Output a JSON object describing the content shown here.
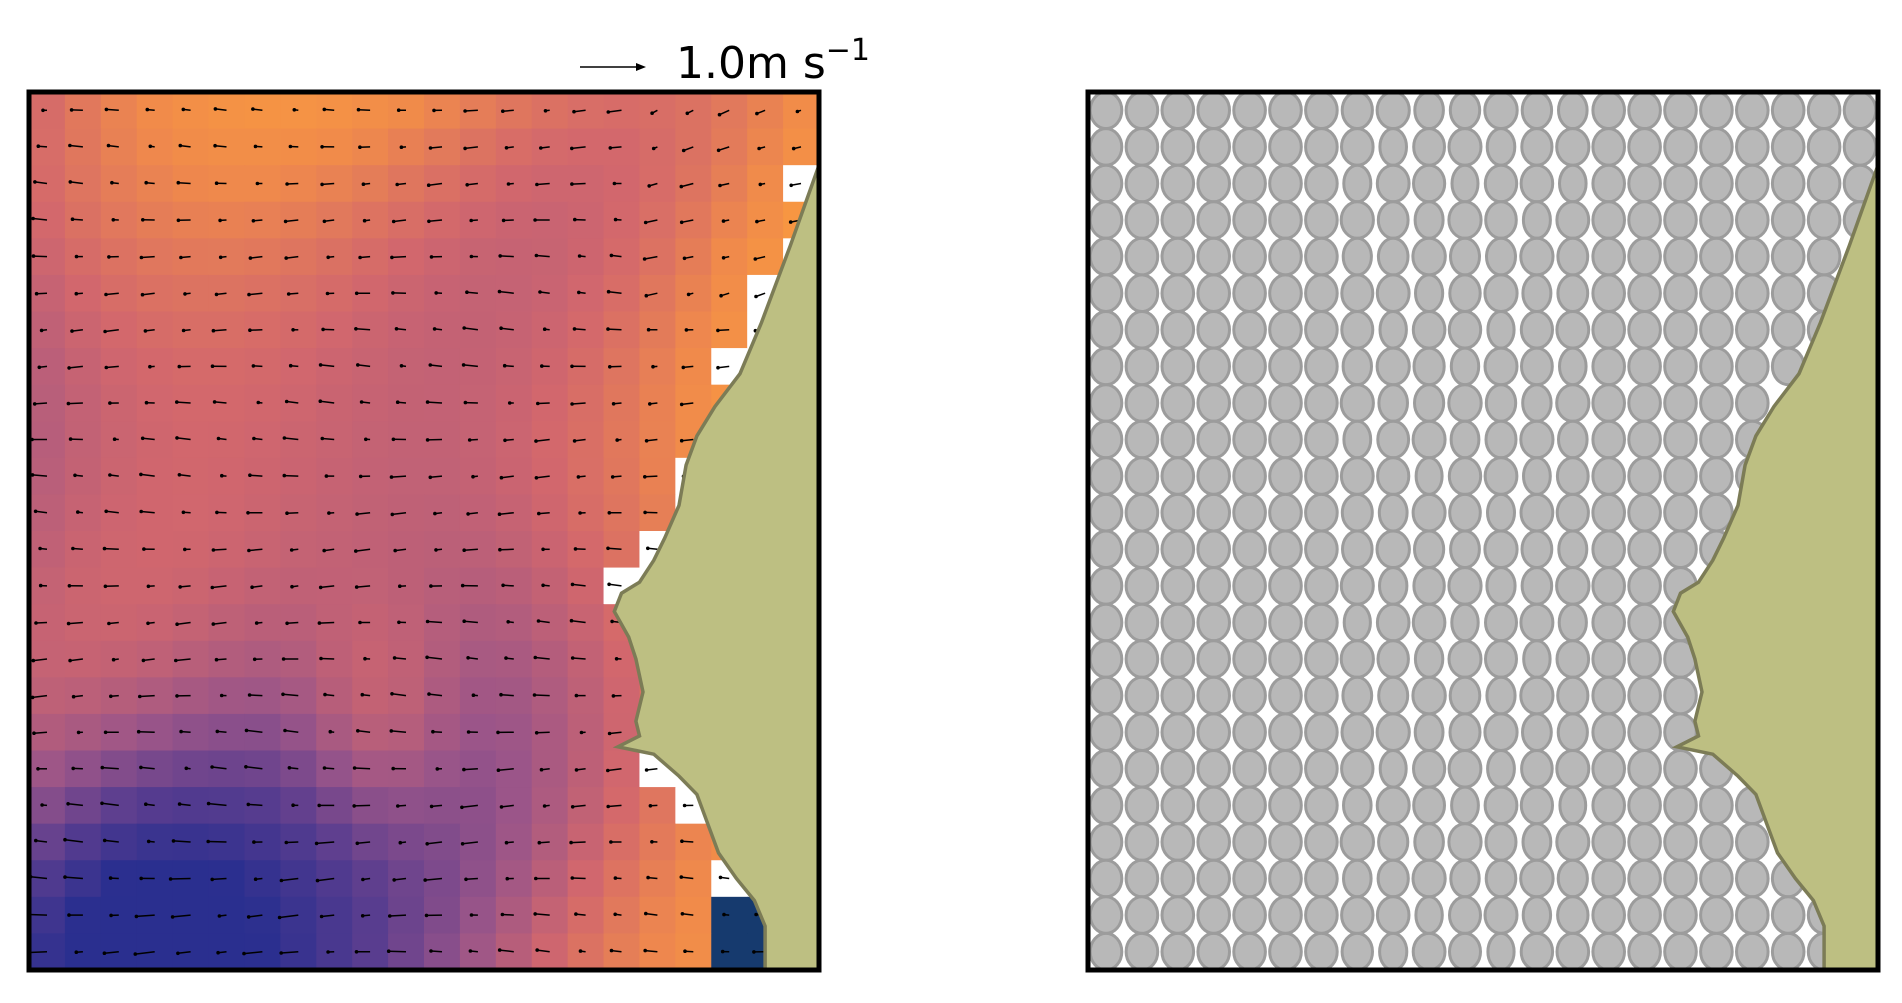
{
  "quiver_key": {
    "value": "1.0",
    "unit": "m s",
    "exponent": "−1"
  },
  "left_panel": {
    "grid": {
      "cols": 22,
      "rows": 24,
      "cell_m": 1
    },
    "colormap": [
      "#2a2f8f",
      "#5a3d8f",
      "#9a5589",
      "#d2676d",
      "#f08a4b",
      "#fb9e3c"
    ],
    "masked_color": "#ffffff",
    "low_color": "#163a6e",
    "land_color": "#bdbf82",
    "land_edge_color": "#7c7c56",
    "frame_color": "#000000"
  },
  "right_panel": {
    "grid": {
      "cols": 22,
      "rows": 24,
      "cell_m": 1
    },
    "ellipse_fill": "#b8b8b8",
    "ellipse_edge": "#9c9c9c",
    "land_color": "#bdbf82",
    "land_edge_color": "#7c7c56",
    "frame_color": "#000000"
  },
  "coastline": [
    [
      22,
      2
    ],
    [
      21.2,
      4.2
    ],
    [
      20.4,
      6.3
    ],
    [
      19.8,
      7.7
    ],
    [
      19.1,
      8.6
    ],
    [
      18.6,
      9.4
    ],
    [
      18.3,
      10.2
    ],
    [
      18.1,
      11.3
    ],
    [
      17.7,
      12.2
    ],
    [
      17.4,
      12.8
    ],
    [
      17.0,
      13.4
    ],
    [
      16.5,
      13.7
    ],
    [
      16.3,
      14.2
    ],
    [
      16.7,
      14.9
    ],
    [
      16.9,
      15.5
    ],
    [
      17.1,
      16.4
    ],
    [
      16.9,
      17.2
    ],
    [
      17.0,
      17.6
    ],
    [
      16.4,
      17.9
    ],
    [
      17.4,
      18.1
    ],
    [
      18.1,
      18.7
    ],
    [
      18.6,
      19.2
    ],
    [
      18.9,
      20.0
    ],
    [
      19.2,
      20.8
    ],
    [
      19.7,
      21.5
    ],
    [
      20.2,
      22.1
    ],
    [
      20.5,
      22.8
    ],
    [
      20.5,
      24.0
    ],
    [
      22,
      24
    ]
  ]
}
